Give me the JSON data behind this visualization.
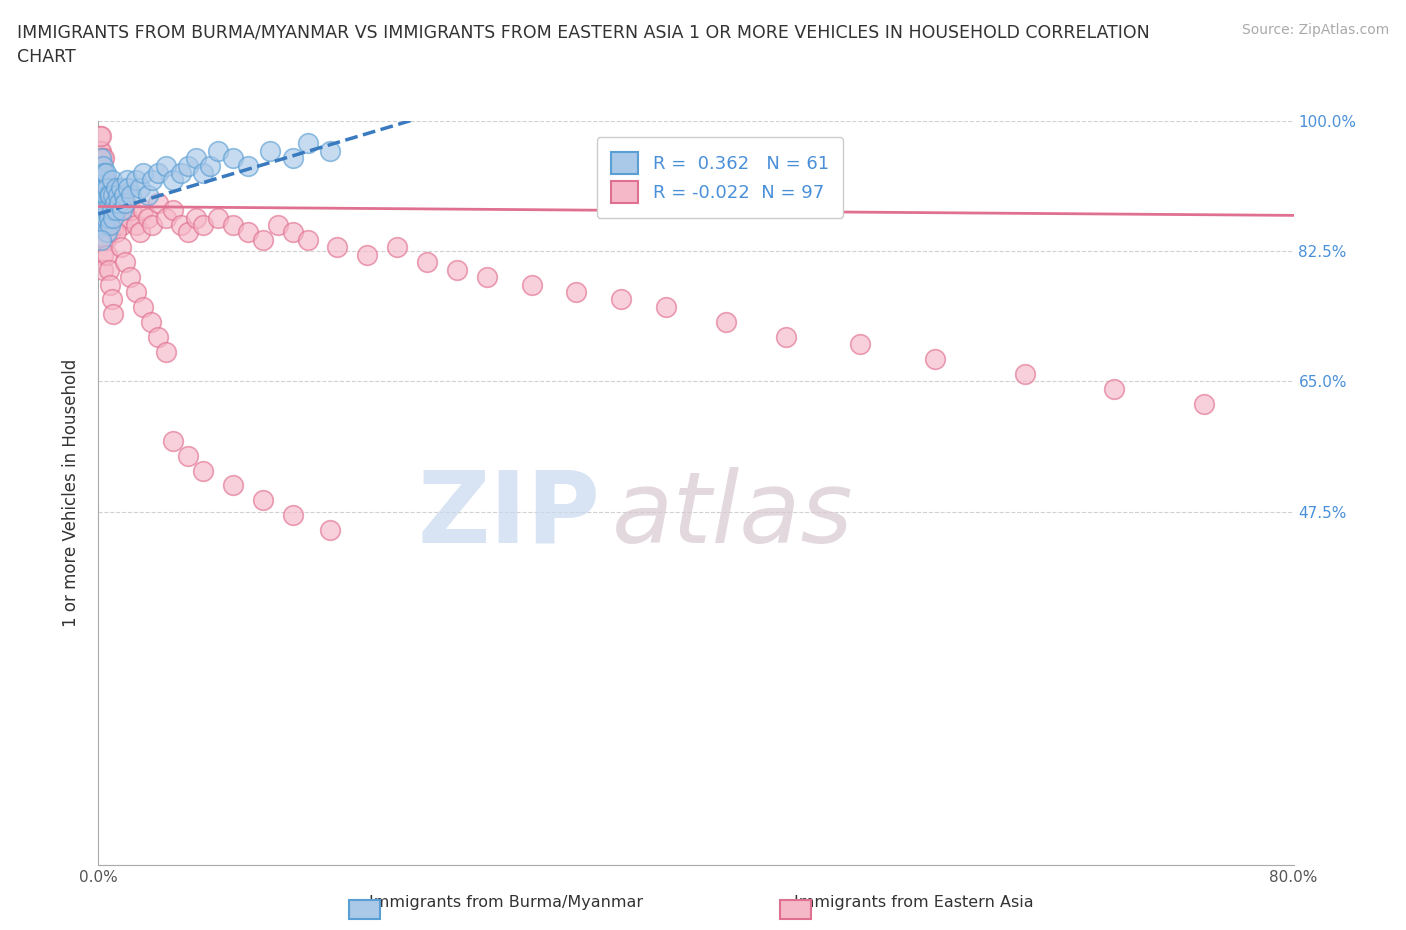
{
  "title": "IMMIGRANTS FROM BURMA/MYANMAR VS IMMIGRANTS FROM EASTERN ASIA 1 OR MORE VEHICLES IN HOUSEHOLD CORRELATION\nCHART",
  "source": "Source: ZipAtlas.com",
  "ylabel": "1 or more Vehicles in Household",
  "xlim": [
    0.0,
    0.8
  ],
  "ylim": [
    0.0,
    1.0
  ],
  "xtick_positions": [
    0.0,
    0.2,
    0.4,
    0.6,
    0.8
  ],
  "xticklabels": [
    "0.0%",
    "",
    "",
    "",
    "80.0%"
  ],
  "ytick_positions": [
    0.0,
    0.475,
    0.65,
    0.825,
    1.0
  ],
  "yticklabels": [
    "",
    "47.5%",
    "65.0%",
    "82.5%",
    "100.0%"
  ],
  "R_burma": 0.362,
  "N_burma": 61,
  "R_eastern": -0.022,
  "N_eastern": 97,
  "color_burma_fill": "#aac8e8",
  "color_burma_edge": "#5a9fd4",
  "color_eastern_fill": "#f5b8c8",
  "color_eastern_edge": "#e07090",
  "line_color_burma": "#3a7abf",
  "line_color_eastern": "#e07090",
  "watermark_zip": "ZIP",
  "watermark_atlas": "atlas",
  "legend_label_burma": "Immigrants from Burma/Myanmar",
  "legend_label_eastern": "Immigrants from Eastern Asia",
  "burma_x": [
    0.001,
    0.001,
    0.001,
    0.002,
    0.002,
    0.002,
    0.002,
    0.003,
    0.003,
    0.003,
    0.003,
    0.004,
    0.004,
    0.004,
    0.005,
    0.005,
    0.005,
    0.006,
    0.006,
    0.006,
    0.007,
    0.007,
    0.008,
    0.008,
    0.009,
    0.009,
    0.01,
    0.01,
    0.011,
    0.012,
    0.012,
    0.013,
    0.014,
    0.015,
    0.016,
    0.017,
    0.018,
    0.019,
    0.02,
    0.022,
    0.025,
    0.028,
    0.03,
    0.033,
    0.036,
    0.04,
    0.045,
    0.05,
    0.055,
    0.06,
    0.065,
    0.07,
    0.075,
    0.08,
    0.09,
    0.1,
    0.115,
    0.13,
    0.14,
    0.155,
    0.002
  ],
  "burma_y": [
    0.89,
    0.91,
    0.93,
    0.87,
    0.9,
    0.92,
    0.95,
    0.86,
    0.89,
    0.91,
    0.94,
    0.88,
    0.91,
    0.93,
    0.87,
    0.9,
    0.93,
    0.85,
    0.88,
    0.91,
    0.87,
    0.9,
    0.86,
    0.9,
    0.88,
    0.92,
    0.87,
    0.9,
    0.89,
    0.88,
    0.91,
    0.9,
    0.89,
    0.91,
    0.88,
    0.9,
    0.89,
    0.92,
    0.91,
    0.9,
    0.92,
    0.91,
    0.93,
    0.9,
    0.92,
    0.93,
    0.94,
    0.92,
    0.93,
    0.94,
    0.95,
    0.93,
    0.94,
    0.96,
    0.95,
    0.94,
    0.96,
    0.95,
    0.97,
    0.96,
    0.84
  ],
  "eastern_x": [
    0.001,
    0.001,
    0.001,
    0.002,
    0.002,
    0.002,
    0.002,
    0.003,
    0.003,
    0.003,
    0.004,
    0.004,
    0.004,
    0.005,
    0.005,
    0.006,
    0.006,
    0.007,
    0.007,
    0.008,
    0.008,
    0.009,
    0.01,
    0.01,
    0.011,
    0.012,
    0.013,
    0.014,
    0.015,
    0.016,
    0.017,
    0.018,
    0.02,
    0.022,
    0.025,
    0.028,
    0.03,
    0.033,
    0.036,
    0.04,
    0.045,
    0.05,
    0.055,
    0.06,
    0.065,
    0.07,
    0.08,
    0.09,
    0.1,
    0.11,
    0.12,
    0.13,
    0.14,
    0.16,
    0.18,
    0.2,
    0.22,
    0.24,
    0.26,
    0.29,
    0.32,
    0.35,
    0.38,
    0.42,
    0.46,
    0.51,
    0.56,
    0.62,
    0.68,
    0.74,
    0.001,
    0.002,
    0.003,
    0.003,
    0.004,
    0.005,
    0.006,
    0.007,
    0.008,
    0.009,
    0.01,
    0.012,
    0.015,
    0.018,
    0.021,
    0.025,
    0.03,
    0.035,
    0.04,
    0.045,
    0.05,
    0.06,
    0.07,
    0.09,
    0.11,
    0.13,
    0.155
  ],
  "eastern_y": [
    0.93,
    0.96,
    0.98,
    0.91,
    0.94,
    0.96,
    0.98,
    0.9,
    0.93,
    0.95,
    0.89,
    0.92,
    0.95,
    0.88,
    0.92,
    0.87,
    0.91,
    0.86,
    0.9,
    0.85,
    0.89,
    0.88,
    0.87,
    0.91,
    0.86,
    0.89,
    0.88,
    0.87,
    0.9,
    0.86,
    0.88,
    0.89,
    0.87,
    0.88,
    0.86,
    0.85,
    0.88,
    0.87,
    0.86,
    0.89,
    0.87,
    0.88,
    0.86,
    0.85,
    0.87,
    0.86,
    0.87,
    0.86,
    0.85,
    0.84,
    0.86,
    0.85,
    0.84,
    0.83,
    0.82,
    0.83,
    0.81,
    0.8,
    0.79,
    0.78,
    0.77,
    0.76,
    0.75,
    0.73,
    0.71,
    0.7,
    0.68,
    0.66,
    0.64,
    0.62,
    0.86,
    0.84,
    0.82,
    0.8,
    0.88,
    0.84,
    0.82,
    0.8,
    0.78,
    0.76,
    0.74,
    0.85,
    0.83,
    0.81,
    0.79,
    0.77,
    0.75,
    0.73,
    0.71,
    0.69,
    0.57,
    0.55,
    0.53,
    0.51,
    0.49,
    0.47,
    0.45
  ]
}
